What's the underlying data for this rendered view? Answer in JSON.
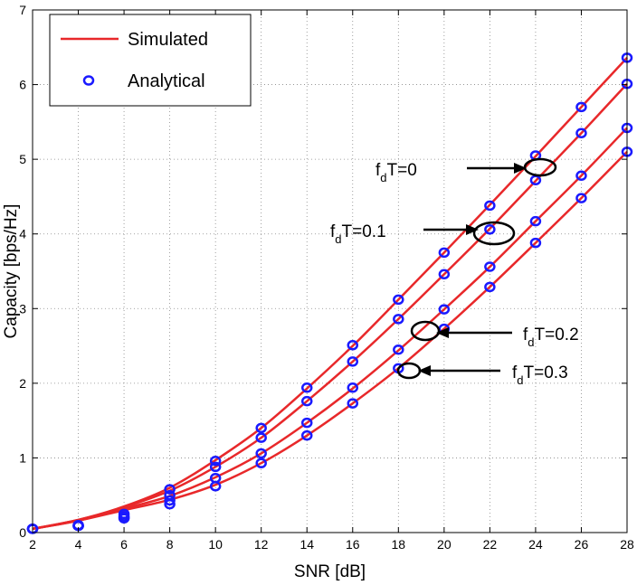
{
  "chart_data": {
    "type": "line",
    "xlabel": "SNR [dB]",
    "ylabel": "Capacity [bps/Hz]",
    "xlim": [
      2,
      28
    ],
    "ylim": [
      0,
      7
    ],
    "xticks": [
      2,
      4,
      6,
      8,
      10,
      12,
      14,
      16,
      18,
      20,
      22,
      24,
      26,
      28
    ],
    "yticks": [
      0,
      1,
      2,
      3,
      4,
      5,
      6,
      7
    ],
    "grid": true,
    "legend_position": "top-left",
    "legend": [
      {
        "label": "Simulated",
        "style": "line",
        "color": "#e8282a"
      },
      {
        "label": "Analytical",
        "style": "circle-marker",
        "color": "#1a1aff"
      }
    ],
    "x": [
      2,
      4,
      6,
      8,
      10,
      12,
      14,
      16,
      18,
      20,
      22,
      24,
      26,
      28
    ],
    "series": [
      {
        "label_main": "f",
        "label_sub": "d",
        "label_rest": "T=0",
        "simulated": [
          0.05,
          0.17,
          0.35,
          0.6,
          0.97,
          1.4,
          1.93,
          2.5,
          3.12,
          3.75,
          4.39,
          5.04,
          5.7,
          6.36
        ],
        "analytical": [
          0.05,
          0.1,
          0.25,
          0.58,
          0.96,
          1.4,
          1.94,
          2.51,
          3.12,
          3.75,
          4.38,
          5.05,
          5.7,
          6.36
        ]
      },
      {
        "label_main": "f",
        "label_sub": "d",
        "label_rest": "T=0.1",
        "simulated": [
          0.05,
          0.17,
          0.34,
          0.56,
          0.88,
          1.27,
          1.76,
          2.29,
          2.86,
          3.46,
          4.07,
          4.71,
          5.35,
          6.01
        ],
        "analytical": [
          0.05,
          0.09,
          0.22,
          0.5,
          0.88,
          1.27,
          1.76,
          2.29,
          2.86,
          3.46,
          4.06,
          4.72,
          5.35,
          6.01
        ]
      },
      {
        "label_main": "f",
        "label_sub": "d",
        "label_rest": "T=0.2",
        "simulated": [
          0.05,
          0.16,
          0.32,
          0.49,
          0.74,
          1.06,
          1.47,
          1.93,
          2.44,
          2.99,
          3.56,
          4.17,
          4.78,
          5.42
        ],
        "analytical": [
          0.05,
          0.09,
          0.2,
          0.43,
          0.73,
          1.06,
          1.47,
          1.94,
          2.45,
          2.99,
          3.56,
          4.17,
          4.78,
          5.42
        ]
      },
      {
        "label_main": "f",
        "label_sub": "d",
        "label_rest": "T=0.3",
        "simulated": [
          0.05,
          0.16,
          0.3,
          0.44,
          0.64,
          0.93,
          1.3,
          1.73,
          2.2,
          2.73,
          3.29,
          3.88,
          4.48,
          5.1
        ],
        "analytical": [
          0.05,
          0.09,
          0.19,
          0.38,
          0.62,
          0.93,
          1.3,
          1.73,
          2.2,
          2.73,
          3.29,
          3.88,
          4.48,
          5.1
        ]
      }
    ],
    "annotations": [
      {
        "series": 0,
        "label_main": "f",
        "label_sub": "d",
        "label_rest": "T=0",
        "ellipse_at": [
          23.5,
          4.9
        ],
        "arrow_direction": "right"
      },
      {
        "series": 1,
        "label_main": "f",
        "label_sub": "d",
        "label_rest": "T=0.1",
        "ellipse_at": [
          22.2,
          4.02
        ],
        "arrow_direction": "right"
      },
      {
        "series": 2,
        "label_main": "f",
        "label_sub": "d",
        "label_rest": "T=0.2",
        "ellipse_at": [
          18.8,
          2.7
        ],
        "arrow_direction": "left"
      },
      {
        "series": 3,
        "label_main": "f",
        "label_sub": "d",
        "label_rest": "T=0.3",
        "ellipse_at": [
          18.0,
          2.17
        ],
        "arrow_direction": "left"
      }
    ]
  }
}
